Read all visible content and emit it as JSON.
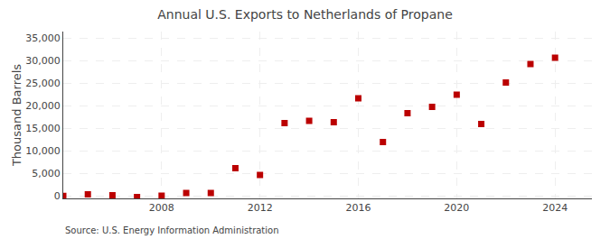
{
  "chart_data": {
    "type": "scatter",
    "title": "Annual U.S. Exports to Netherlands of Propane",
    "ylabel": "Thousand Barrels",
    "annotations": [
      "Source: U.S. Energy Information Administration"
    ],
    "x": [
      2004,
      2005,
      2006,
      2007,
      2008,
      2009,
      2010,
      2011,
      2012,
      2013,
      2014,
      2015,
      2016,
      2017,
      2018,
      2019,
      2020,
      2021,
      2022,
      2023,
      2024
    ],
    "values": [
      50,
      400,
      200,
      -200,
      100,
      700,
      700,
      6200,
      4700,
      16200,
      16700,
      16400,
      21700,
      12000,
      18400,
      19800,
      22500,
      16000,
      25200,
      29300,
      30700
    ],
    "color": "#bb0000",
    "marker": "square",
    "xlim": [
      2004,
      2025.5
    ],
    "ylim": [
      -500,
      36500
    ],
    "xticks": [
      2008,
      2012,
      2016,
      2020,
      2024
    ],
    "yticks": [
      0,
      {
        "value": 5000,
        "label": "5,000"
      },
      {
        "value": 10000,
        "label": "10,000"
      },
      {
        "value": 15000,
        "label": "15,000"
      },
      {
        "value": 20000,
        "label": "20,000"
      },
      {
        "value": 25000,
        "label": "25,000"
      },
      {
        "value": 30000,
        "label": "30,000"
      },
      {
        "value": 35000,
        "label": "35,000"
      }
    ],
    "grid": true
  }
}
